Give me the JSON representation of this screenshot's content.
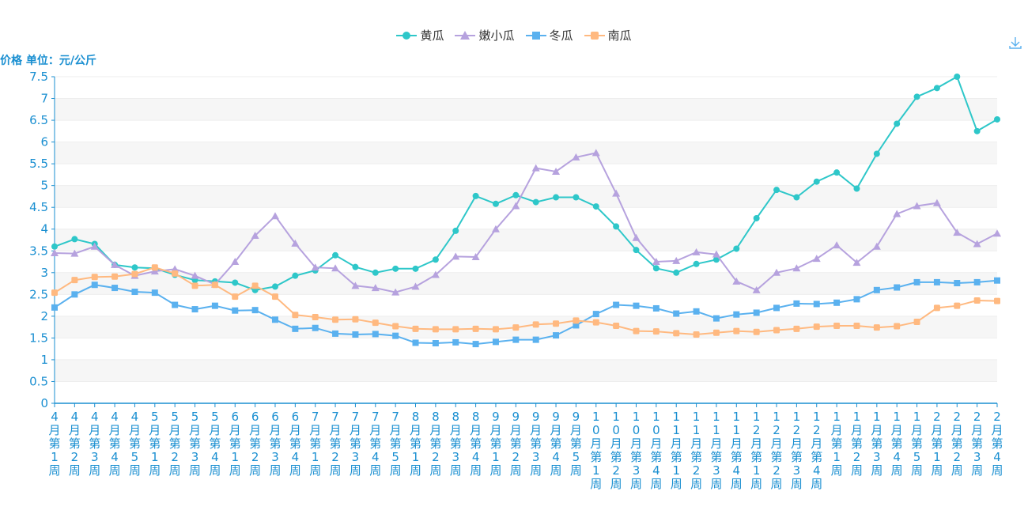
{
  "chart_data": {
    "type": "line",
    "ylabel": "价格 单位：元/公斤",
    "ylim": [
      0,
      7.5
    ],
    "yticks": [
      "0",
      "0.5",
      "1",
      "1.5",
      "2",
      "2.5",
      "3",
      "3.5",
      "4",
      "4.5",
      "5",
      "5.5",
      "6",
      "6.5",
      "7",
      "7.5"
    ],
    "grid": true,
    "legend_position": "top-center",
    "categories": [
      "4月第1周",
      "4月第2周",
      "4月第3周",
      "4月第4周",
      "4月第5周",
      "5月第1周",
      "5月第2周",
      "5月第3周",
      "5月第4周",
      "6月第1周",
      "6月第2周",
      "6月第3周",
      "6月第4周",
      "7月第1周",
      "7月第2周",
      "7月第3周",
      "7月第4周",
      "7月第5周",
      "8月第1周",
      "8月第2周",
      "8月第3周",
      "8月第4周",
      "9月第1周",
      "9月第2周",
      "9月第3周",
      "9月第4周",
      "9月第5周",
      "10月第1周",
      "10月第2周",
      "10月第3周",
      "10月第4周",
      "11月第1周",
      "11月第2周",
      "11月第3周",
      "11月第4周",
      "12月第1周",
      "12月第2周",
      "12月第3周",
      "12月第4周",
      "1月第1周",
      "1月第2周",
      "1月第3周",
      "1月第4周",
      "1月第5周",
      "2月第1周",
      "2月第2周",
      "2月第3周",
      "2月第4周"
    ],
    "series": [
      {
        "name": "黄瓜",
        "color": "#2ec7c9",
        "symbol": "circle",
        "values": [
          3.6,
          3.77,
          3.66,
          3.18,
          3.12,
          3.1,
          2.95,
          2.83,
          2.8,
          2.77,
          2.6,
          2.68,
          2.93,
          3.05,
          3.4,
          3.13,
          3.0,
          3.09,
          3.09,
          3.3,
          3.96,
          4.76,
          4.58,
          4.78,
          4.62,
          4.73,
          4.73,
          4.52,
          4.06,
          3.52,
          3.1,
          3.0,
          3.2,
          3.3,
          3.55,
          4.25,
          4.9,
          4.73,
          5.09,
          5.3,
          4.93,
          5.73,
          6.42,
          7.04,
          7.24,
          7.5,
          6.25,
          6.52
        ]
      },
      {
        "name": "嫩小瓜",
        "color": "#b6a2de",
        "symbol": "triangle",
        "values": [
          3.45,
          3.44,
          3.6,
          3.18,
          2.93,
          3.03,
          3.08,
          2.93,
          2.73,
          3.25,
          3.85,
          4.3,
          3.67,
          3.12,
          3.1,
          2.7,
          2.65,
          2.55,
          2.68,
          2.95,
          3.37,
          3.36,
          4.0,
          4.53,
          5.4,
          5.32,
          5.65,
          5.75,
          4.82,
          3.8,
          3.25,
          3.27,
          3.47,
          3.42,
          2.8,
          2.6,
          3.0,
          3.1,
          3.32,
          3.63,
          3.23,
          3.6,
          4.35,
          4.53,
          4.6,
          3.92,
          3.66,
          3.9
        ]
      },
      {
        "name": "冬瓜",
        "color": "#5ab1ef",
        "symbol": "square",
        "values": [
          2.2,
          2.5,
          2.72,
          2.65,
          2.56,
          2.54,
          2.26,
          2.16,
          2.24,
          2.13,
          2.14,
          1.92,
          1.71,
          1.73,
          1.6,
          1.58,
          1.59,
          1.55,
          1.39,
          1.38,
          1.4,
          1.36,
          1.41,
          1.46,
          1.46,
          1.56,
          1.79,
          2.05,
          2.26,
          2.24,
          2.18,
          2.06,
          2.11,
          1.95,
          2.04,
          2.08,
          2.19,
          2.29,
          2.28,
          2.31,
          2.39,
          2.6,
          2.66,
          2.78,
          2.78,
          2.76,
          2.78,
          2.82
        ]
      },
      {
        "name": "南瓜",
        "color": "#ffb980",
        "symbol": "square",
        "values": [
          2.54,
          2.83,
          2.9,
          2.91,
          2.97,
          3.12,
          2.98,
          2.7,
          2.72,
          2.45,
          2.7,
          2.45,
          2.03,
          1.98,
          1.92,
          1.93,
          1.85,
          1.77,
          1.71,
          1.7,
          1.7,
          1.71,
          1.7,
          1.74,
          1.81,
          1.83,
          1.9,
          1.86,
          1.78,
          1.66,
          1.65,
          1.61,
          1.58,
          1.62,
          1.66,
          1.64,
          1.68,
          1.71,
          1.76,
          1.78,
          1.78,
          1.74,
          1.77,
          1.87,
          2.19,
          2.24,
          2.36,
          2.35
        ]
      }
    ]
  },
  "toolbox": {
    "download_icon": "download-icon"
  }
}
